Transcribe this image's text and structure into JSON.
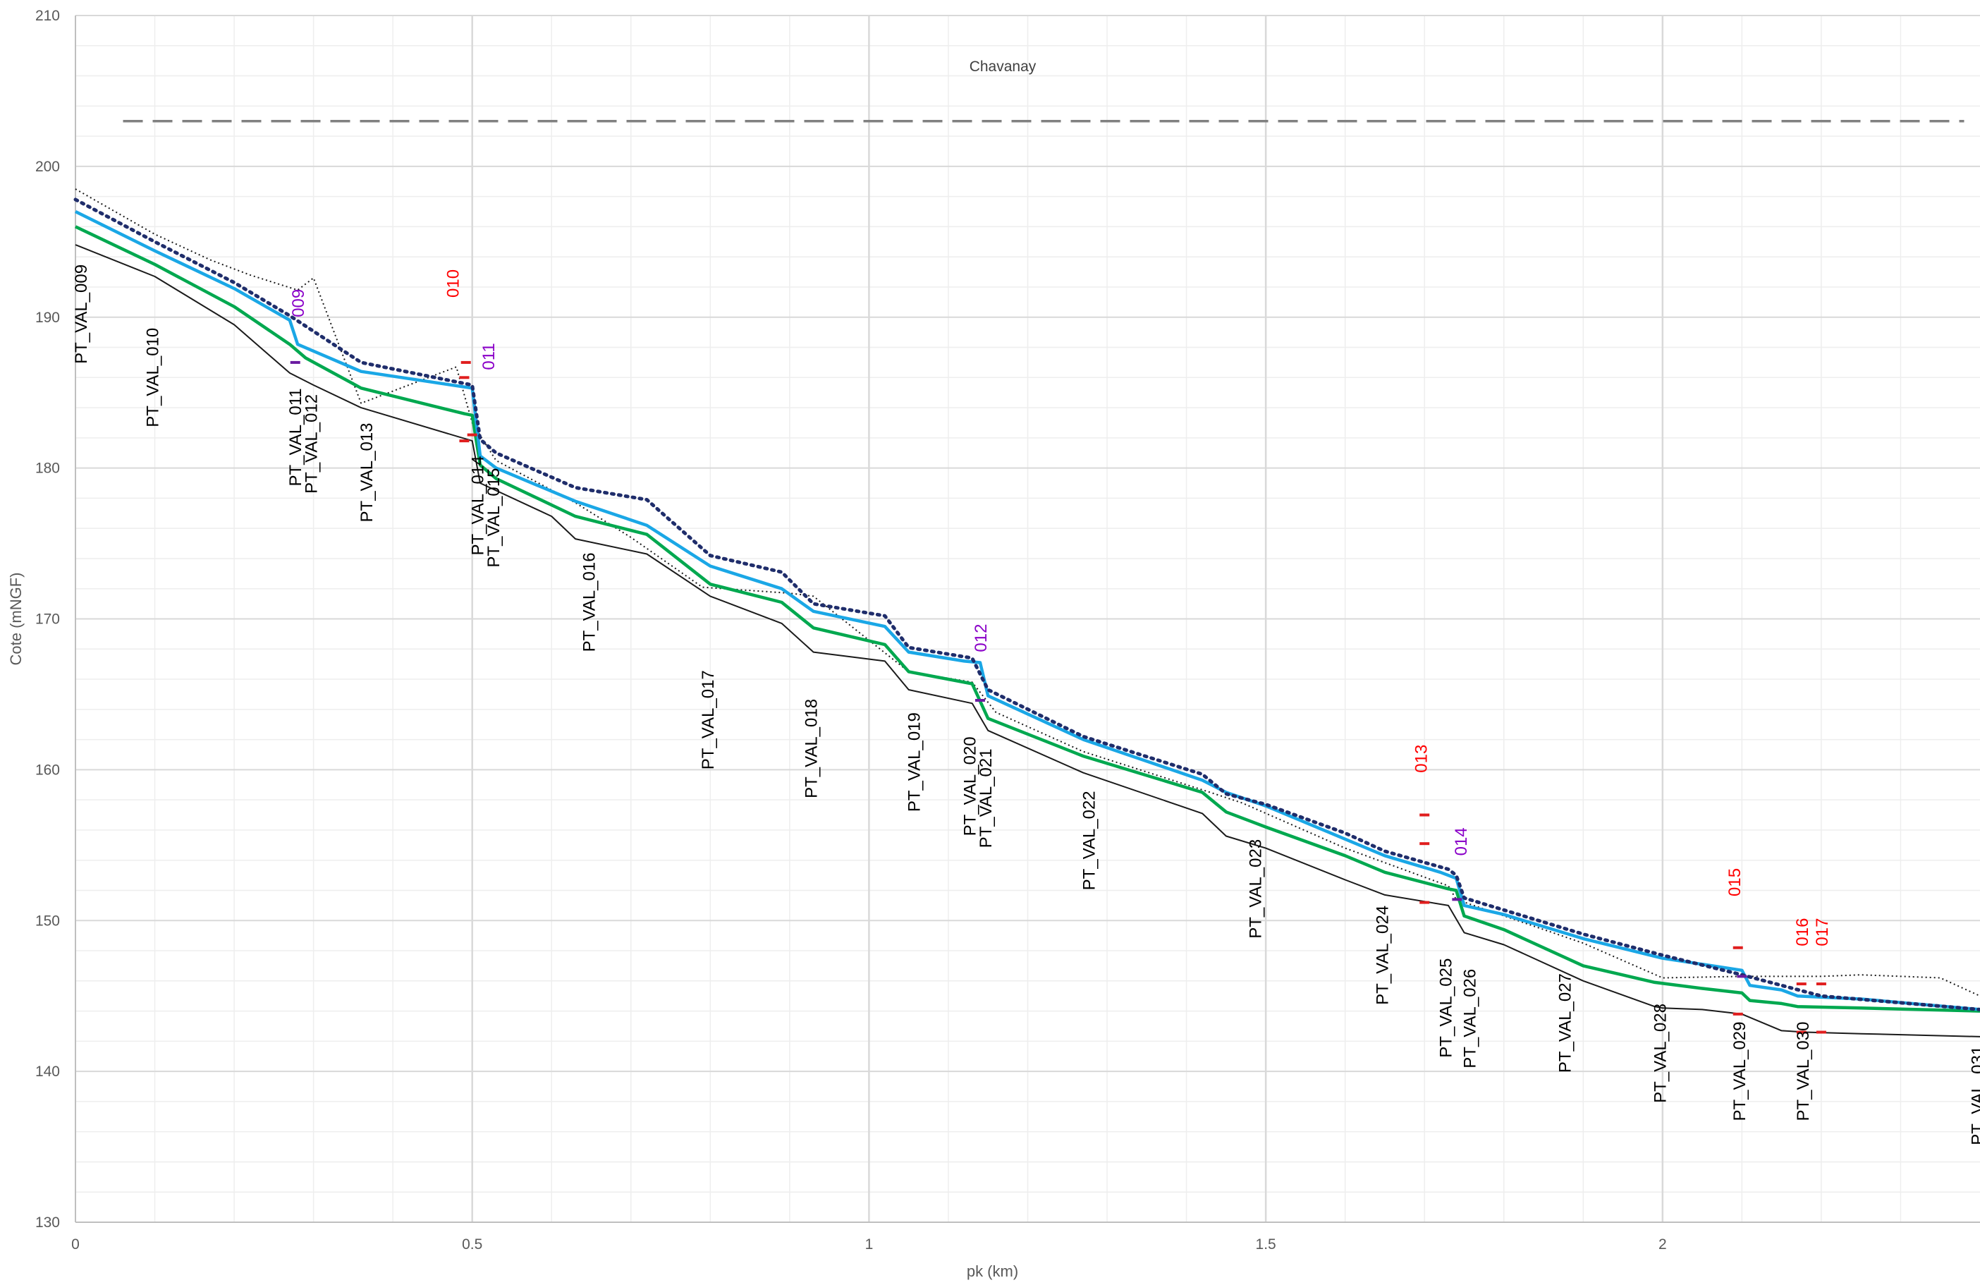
{
  "chart_data": {
    "type": "line",
    "title": "",
    "xlabel": "pk (km)",
    "ylabel": "Cote (mNGF)",
    "xlim": [
      0,
      2.4
    ],
    "ylim": [
      130,
      210
    ],
    "x_major_ticks": [
      0,
      0.5,
      1,
      1.5,
      2
    ],
    "x_tick_labels": [
      "0",
      "0.5",
      "1",
      "1.5",
      "2"
    ],
    "y_major_ticks": [
      130,
      140,
      150,
      160,
      170,
      180,
      190,
      200,
      210
    ],
    "y_tick_labels": [
      "130",
      "140",
      "150",
      "160",
      "170",
      "180",
      "190",
      "200",
      "210"
    ],
    "x_minor_step": 0.1,
    "y_minor_step": 2,
    "grid": true,
    "legend": "none",
    "colors": {
      "bed": "#1a1a1a",
      "bank": "#1a1a1a",
      "green": "#00a84f",
      "blue": "#1aa7e6",
      "dotted": "#1f2d6b",
      "dashed": "#808080",
      "red_label": "#ff0000",
      "red_mark": "#e01e1e",
      "purple_label": "#8a00c8",
      "purple_mark": "#6a1aa0",
      "grid_major": "#d9d9d9",
      "grid_minor": "#eeeeee"
    },
    "series": [
      {
        "style": "thin-black",
        "x": [
          0,
          0.1,
          0.2,
          0.27,
          0.3,
          0.36,
          0.5,
          0.51,
          0.6,
          0.63,
          0.72,
          0.8,
          0.89,
          0.93,
          1.02,
          1.05,
          1.13,
          1.15,
          1.27,
          1.42,
          1.45,
          1.5,
          1.6,
          1.65,
          1.73,
          1.75,
          1.8,
          1.9,
          1.99,
          2.0,
          2.05,
          2.1,
          2.15,
          2.18,
          2.25,
          2.4
        ],
        "y": [
          194.8,
          192.7,
          189.5,
          186.3,
          185.5,
          184.0,
          181.8,
          179.0,
          176.8,
          175.3,
          174.3,
          171.5,
          169.7,
          167.8,
          167.2,
          165.3,
          164.4,
          162.6,
          159.8,
          157.1,
          155.6,
          154.8,
          152.7,
          151.7,
          151.0,
          149.2,
          148.4,
          146.0,
          144.3,
          144.2,
          144.1,
          143.8,
          142.7,
          142.6,
          142.5,
          142.3
        ]
      },
      {
        "style": "thin-dotted",
        "x": [
          0,
          0.1,
          0.17,
          0.22,
          0.28,
          0.3,
          0.36,
          0.48,
          0.5,
          0.53,
          0.63,
          0.7,
          0.79,
          0.9,
          0.93,
          1.05,
          1.13,
          1.16,
          1.27,
          1.43,
          1.47,
          1.6,
          1.73,
          1.74,
          1.9,
          2.0,
          2.1,
          2.2,
          2.25,
          2.35,
          2.4
        ],
        "y": [
          198.5,
          195.5,
          193.8,
          192.8,
          191.8,
          192.6,
          184.3,
          186.7,
          183.0,
          180.5,
          177.7,
          175.4,
          172.1,
          171.7,
          171.5,
          166.5,
          165.8,
          163.8,
          161.2,
          158.5,
          157.8,
          154.8,
          152.3,
          151.4,
          148.5,
          146.2,
          146.3,
          146.3,
          146.4,
          146.2,
          145.0
        ]
      },
      {
        "style": "green",
        "x": [
          0,
          0.1,
          0.2,
          0.27,
          0.29,
          0.36,
          0.49,
          0.5,
          0.51,
          0.53,
          0.63,
          0.72,
          0.8,
          0.89,
          0.93,
          1.02,
          1.05,
          1.13,
          1.15,
          1.27,
          1.42,
          1.45,
          1.5,
          1.6,
          1.65,
          1.73,
          1.74,
          1.75,
          1.8,
          1.9,
          1.99,
          2.05,
          2.1,
          2.11,
          2.15,
          2.17,
          2.25,
          2.4
        ],
        "y": [
          196.0,
          193.5,
          190.7,
          188.2,
          187.3,
          185.3,
          183.6,
          183.5,
          180.2,
          179.3,
          176.8,
          175.6,
          172.3,
          171.1,
          169.4,
          168.3,
          166.5,
          165.7,
          163.4,
          160.9,
          158.5,
          157.2,
          156.2,
          154.3,
          153.2,
          152.1,
          152.0,
          150.3,
          149.4,
          147.0,
          145.9,
          145.5,
          145.2,
          144.7,
          144.5,
          144.3,
          144.2,
          144.0
        ]
      },
      {
        "style": "blue",
        "x": [
          0,
          0.1,
          0.2,
          0.27,
          0.28,
          0.36,
          0.5,
          0.51,
          0.53,
          0.63,
          0.72,
          0.8,
          0.89,
          0.93,
          1.02,
          1.05,
          1.12,
          1.14,
          1.15,
          1.27,
          1.42,
          1.45,
          1.5,
          1.6,
          1.65,
          1.72,
          1.74,
          1.75,
          1.8,
          1.9,
          2.0,
          2.1,
          2.11,
          2.15,
          2.17,
          2.25,
          2.4
        ],
        "y": [
          197.0,
          194.4,
          191.9,
          189.8,
          188.2,
          186.4,
          185.3,
          180.8,
          180.0,
          177.8,
          176.2,
          173.5,
          172.0,
          170.5,
          169.5,
          167.8,
          167.2,
          167.1,
          164.9,
          162.0,
          159.3,
          158.5,
          157.6,
          155.4,
          154.3,
          153.2,
          152.8,
          151.0,
          150.4,
          148.8,
          147.5,
          146.7,
          145.7,
          145.4,
          145.0,
          144.8,
          144.1
        ]
      },
      {
        "style": "navy-dotted",
        "x": [
          0,
          0.1,
          0.2,
          0.27,
          0.36,
          0.5,
          0.51,
          0.53,
          0.63,
          0.72,
          0.8,
          0.89,
          0.93,
          1.02,
          1.05,
          1.13,
          1.15,
          1.27,
          1.42,
          1.45,
          1.5,
          1.6,
          1.65,
          1.73,
          1.74,
          1.75,
          1.9,
          2.0,
          2.1,
          2.15,
          2.2,
          2.4
        ],
        "y": [
          197.8,
          195.0,
          192.3,
          190.1,
          187.0,
          185.5,
          181.9,
          181.0,
          178.7,
          177.9,
          174.2,
          173.1,
          171.0,
          170.2,
          168.1,
          167.4,
          165.3,
          162.2,
          159.7,
          158.4,
          157.7,
          155.8,
          154.6,
          153.4,
          153.0,
          151.5,
          149.1,
          147.7,
          146.4,
          145.7,
          145.0,
          144.1
        ]
      },
      {
        "style": "dashed-grey",
        "x": [
          0.06,
          2.38
        ],
        "y": [
          203,
          203
        ]
      }
    ],
    "profiles": [
      {
        "label": "PT_VAL_009",
        "x": 0.0,
        "y_top": 193.5
      },
      {
        "label": "PT_VAL_010",
        "x": 0.09,
        "y_top": 189.3
      },
      {
        "label": "PT_VAL_011",
        "x": 0.27,
        "y_top": 185.3
      },
      {
        "label": "PT_VAL_012",
        "x": 0.29,
        "y_top": 184.9
      },
      {
        "label": "PT_VAL_013",
        "x": 0.36,
        "y_top": 183.0
      },
      {
        "label": "PT_VAL_014",
        "x": 0.5,
        "y_top": 180.8
      },
      {
        "label": "PT_VAL_015",
        "x": 0.52,
        "y_top": 180.0
      },
      {
        "label": "PT_VAL_016",
        "x": 0.64,
        "y_top": 174.4
      },
      {
        "label": "PT_VAL_017",
        "x": 0.79,
        "y_top": 166.6
      },
      {
        "label": "PT_VAL_018",
        "x": 0.92,
        "y_top": 164.7
      },
      {
        "label": "PT_VAL_019",
        "x": 1.05,
        "y_top": 163.8
      },
      {
        "label": "PT_VAL_020",
        "x": 1.12,
        "y_top": 162.2
      },
      {
        "label": "PT_VAL_021",
        "x": 1.14,
        "y_top": 161.4
      },
      {
        "label": "PT_VAL_022",
        "x": 1.27,
        "y_top": 158.6
      },
      {
        "label": "PT_VAL_023",
        "x": 1.48,
        "y_top": 155.4
      },
      {
        "label": "PT_VAL_024",
        "x": 1.64,
        "y_top": 151.0
      },
      {
        "label": "PT_VAL_025",
        "x": 1.72,
        "y_top": 147.5
      },
      {
        "label": "PT_VAL_026",
        "x": 1.75,
        "y_top": 146.8
      },
      {
        "label": "PT_VAL_027",
        "x": 1.87,
        "y_top": 146.5
      },
      {
        "label": "PT_VAL_028",
        "x": 1.99,
        "y_top": 144.5
      },
      {
        "label": "PT_VAL_029",
        "x": 2.09,
        "y_top": 143.3
      },
      {
        "label": "PT_VAL_030",
        "x": 2.17,
        "y_top": 143.3
      },
      {
        "label": "PT_VAL_031",
        "x": 2.39,
        "y_top": 141.7
      }
    ],
    "ouvrages": [
      {
        "label": "009",
        "color": "purple",
        "x": 0.28,
        "y_top": 190.0
      },
      {
        "label": "010",
        "color": "red",
        "x": 0.475,
        "y_top": 191.3
      },
      {
        "label": "011",
        "color": "purple",
        "x": 0.52,
        "y_top": 186.5
      },
      {
        "label": "012",
        "color": "purple",
        "x": 1.14,
        "y_top": 167.8
      },
      {
        "label": "013",
        "color": "red",
        "x": 1.695,
        "y_top": 159.8
      },
      {
        "label": "014",
        "color": "purple",
        "x": 1.745,
        "y_top": 154.3
      },
      {
        "label": "015",
        "color": "red",
        "x": 2.09,
        "y_top": 151.6
      },
      {
        "label": "016",
        "color": "red",
        "x": 2.175,
        "y_top": 148.3
      },
      {
        "label": "017",
        "color": "red",
        "x": 2.2,
        "y_top": 148.3
      }
    ],
    "ouvrage_marks": [
      {
        "color": "purple",
        "x": 0.277,
        "y": 187.0
      },
      {
        "color": "red",
        "x": 0.492,
        "y": 187.0
      },
      {
        "color": "red",
        "x": 0.49,
        "y": 186.0
      },
      {
        "color": "red",
        "x": 0.49,
        "y": 181.8
      },
      {
        "color": "red",
        "x": 0.5,
        "y": 182.2
      },
      {
        "color": "purple",
        "x": 1.14,
        "y": 164.6
      },
      {
        "color": "red",
        "x": 1.7,
        "y": 157.0
      },
      {
        "color": "red",
        "x": 1.7,
        "y": 155.1
      },
      {
        "color": "red",
        "x": 1.7,
        "y": 151.2
      },
      {
        "color": "purple",
        "x": 1.741,
        "y": 151.4
      },
      {
        "color": "red",
        "x": 2.095,
        "y": 148.2
      },
      {
        "color": "red",
        "x": 2.095,
        "y": 143.8
      },
      {
        "color": "purple",
        "x": 2.1,
        "y": 146.3
      },
      {
        "color": "red",
        "x": 2.175,
        "y": 145.8
      },
      {
        "color": "red",
        "x": 2.175,
        "y": 142.6
      },
      {
        "color": "red",
        "x": 2.2,
        "y": 145.8
      },
      {
        "color": "red",
        "x": 2.2,
        "y": 142.6
      }
    ],
    "annotations": [
      {
        "text": "Chavanay",
        "x": 1.14,
        "y": 206.3
      }
    ]
  }
}
